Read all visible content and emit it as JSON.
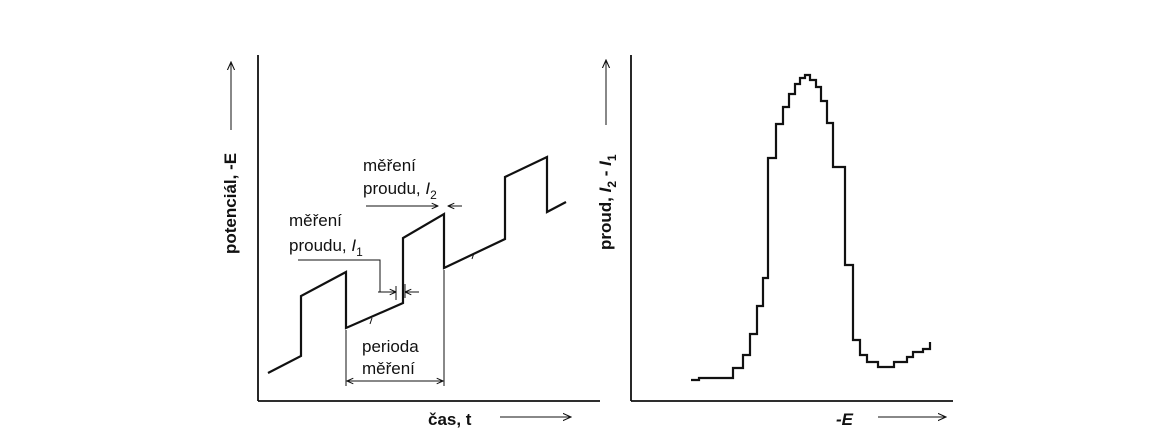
{
  "left_panel": {
    "y_axis_label": "potenciál, -E",
    "x_axis_label": "čas, t",
    "annotation_i1_line1": "měření",
    "annotation_i1_line2": "proudu, ",
    "annotation_i1_symbol": "I",
    "annotation_i1_subscript": "1",
    "annotation_i2_line1": "měření",
    "annotation_i2_line2": "proudu, ",
    "annotation_i2_symbol": "I",
    "annotation_i2_subscript": "2",
    "period_line1": "perioda",
    "period_line2": "měření"
  },
  "right_panel": {
    "y_axis_label_prefix": "proud, ",
    "y_axis_I2": "I",
    "y_axis_I2_sub": "2",
    "y_axis_minus": " - ",
    "y_axis_I1": "I",
    "y_axis_I1_sub": "1",
    "x_axis_label": "-E"
  }
}
